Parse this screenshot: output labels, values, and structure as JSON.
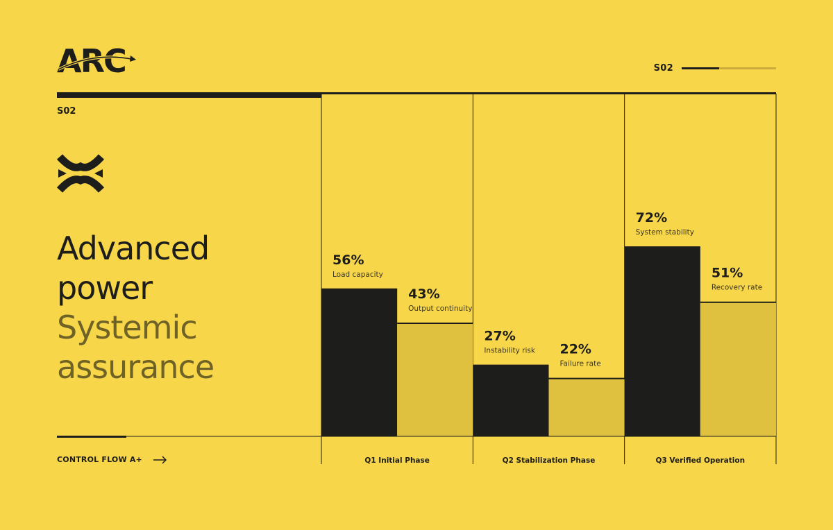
{
  "brand": {
    "logo_text": "ARC"
  },
  "header": {
    "section_indicator": "S02",
    "progress": 0.4
  },
  "left": {
    "section_code": "S02",
    "icon": "brand-mark-icon",
    "headline": {
      "line1": "Advanced",
      "line2": "power",
      "line3": "Systemic",
      "line4": "assurance"
    },
    "control_flow": {
      "label": "CONTROL FLOW A+",
      "icon": "arrow-right-icon"
    }
  },
  "colors": {
    "background": "#f8d64a",
    "primary": "#1d1d1b",
    "secondary": "#dfc03f",
    "muted_text": "#6f6226"
  },
  "chart_data": {
    "type": "bar",
    "categories": [
      "Q1 Initial Phase",
      "Q2 Stabilization Phase",
      "Q3 Verified Operation"
    ],
    "series": [
      {
        "values": [
          56,
          27,
          72
        ],
        "labels": [
          "Load capacity",
          "Instability risk",
          "System stability"
        ],
        "color": "#1d1d1b"
      },
      {
        "values": [
          43,
          22,
          51
        ],
        "labels": [
          "Output continuity",
          "Failure rate",
          "Recovery rate"
        ],
        "color": "#dfc03f"
      }
    ],
    "value_format": "{v}%",
    "ylim": [
      0,
      100
    ],
    "grid": false,
    "legend": "none"
  }
}
